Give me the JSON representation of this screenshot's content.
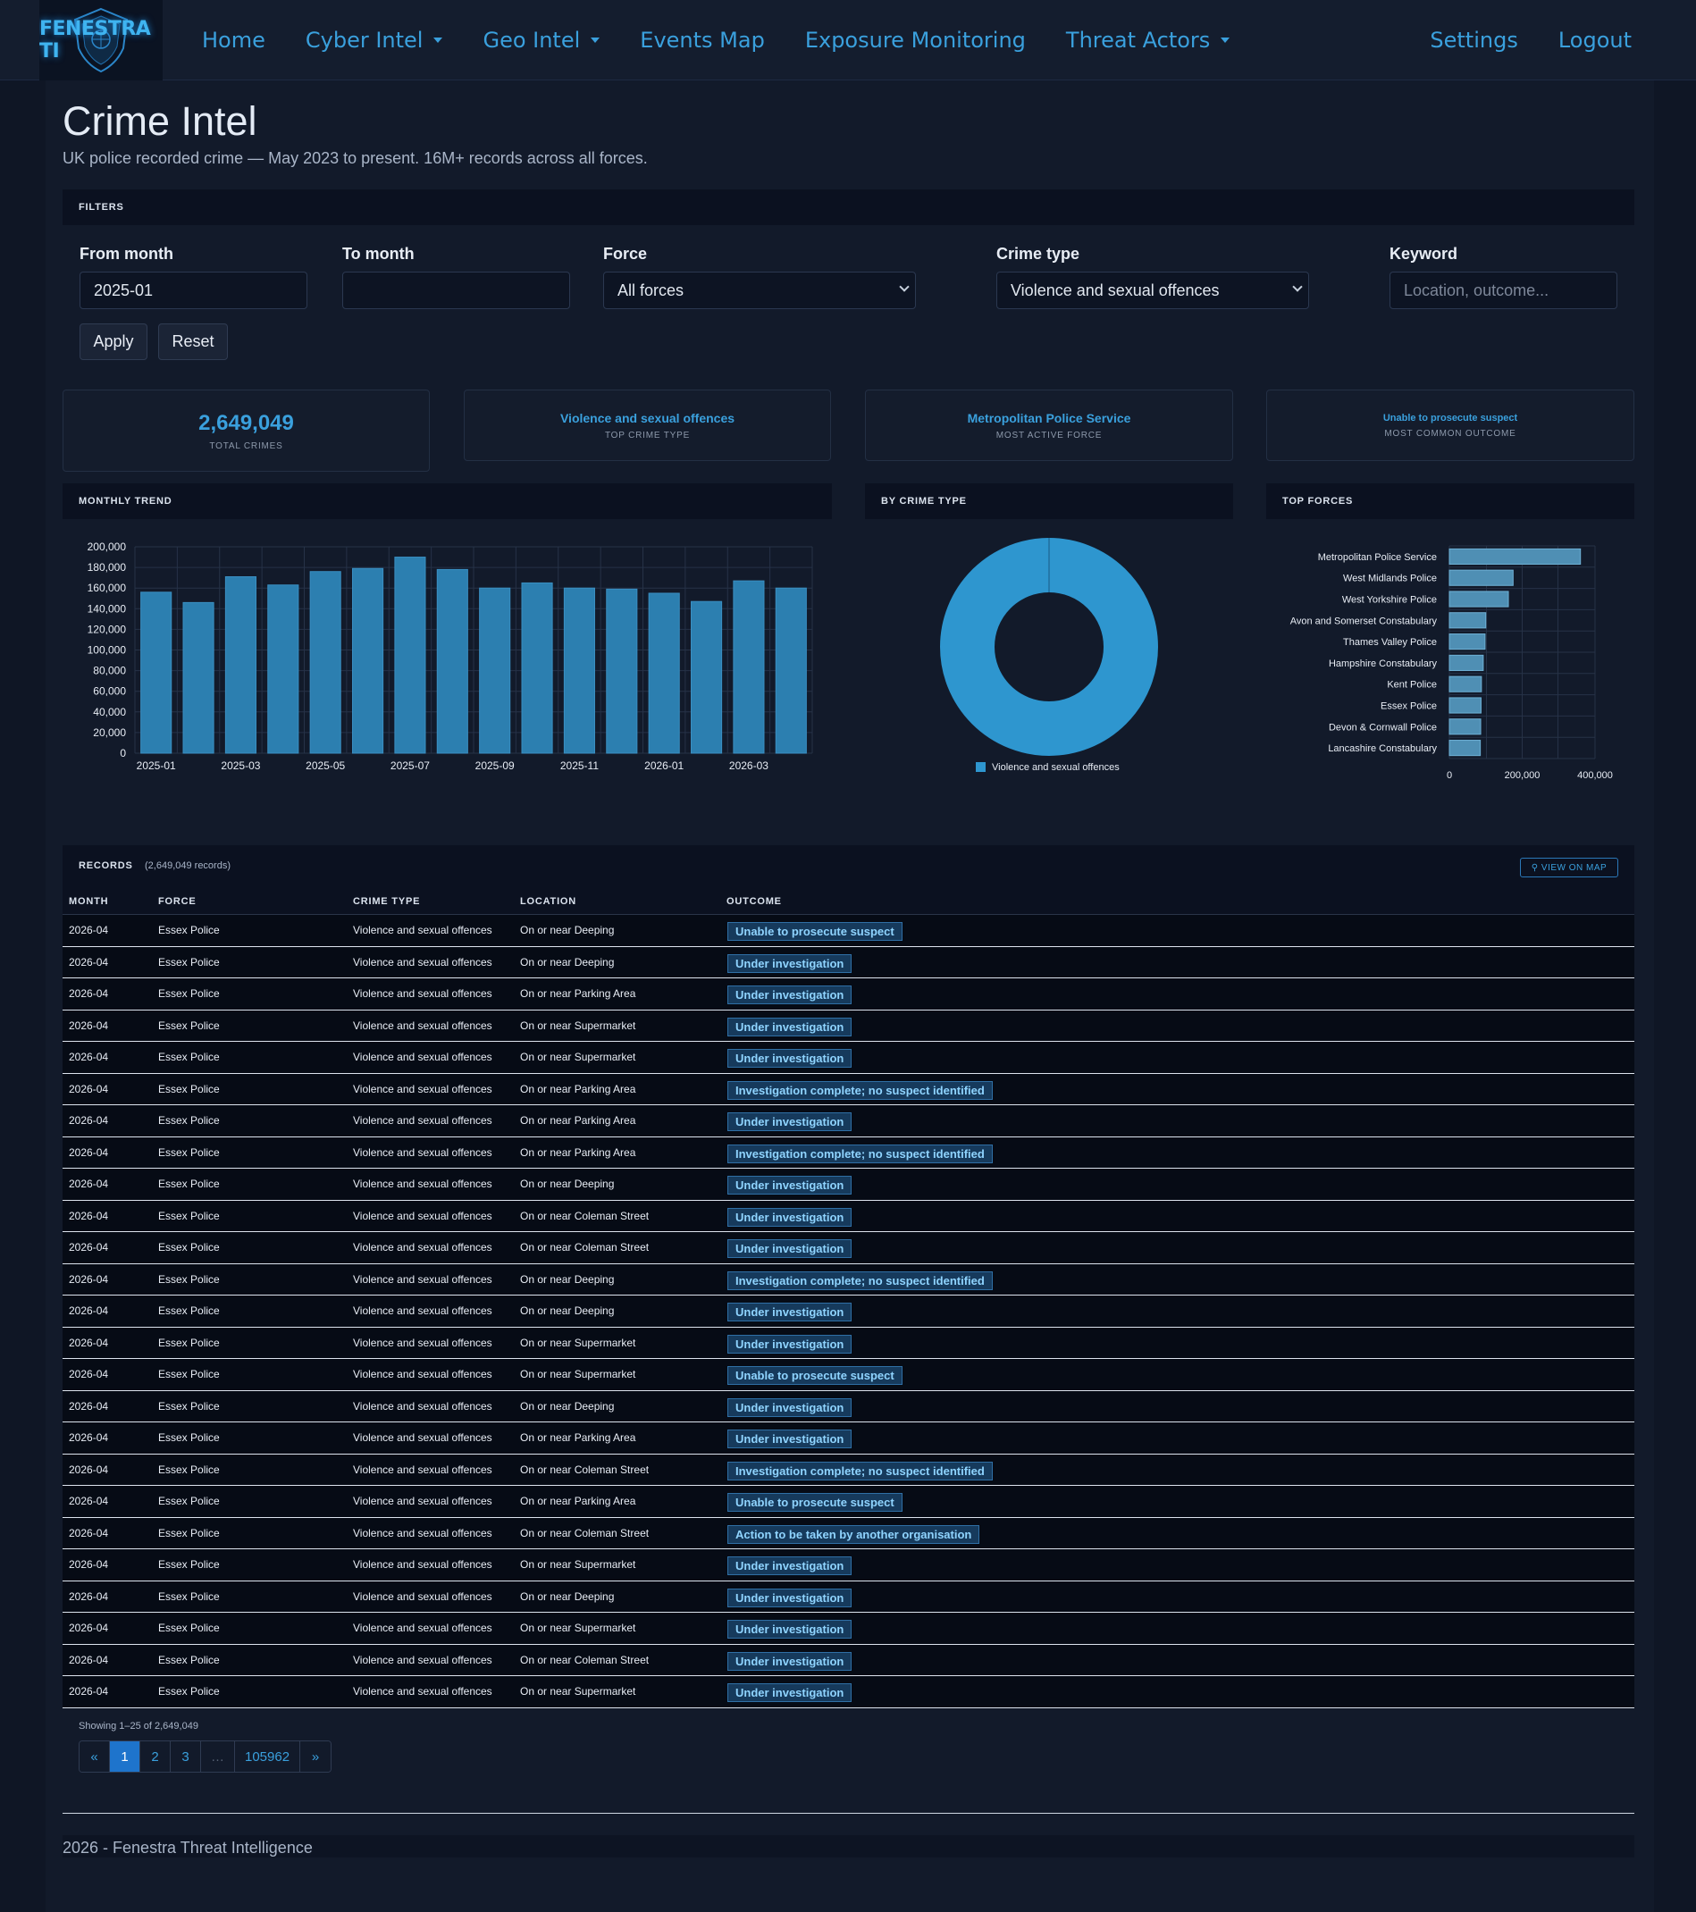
{
  "nav": {
    "logo_text": "FENESTRA TI",
    "links": [
      {
        "label": "Home",
        "dropdown": false
      },
      {
        "label": "Cyber Intel",
        "dropdown": true
      },
      {
        "label": "Geo Intel",
        "dropdown": true
      },
      {
        "label": "Events Map",
        "dropdown": false
      },
      {
        "label": "Exposure Monitoring",
        "dropdown": false
      },
      {
        "label": "Threat Actors",
        "dropdown": true
      }
    ],
    "right_links": [
      {
        "label": "Settings"
      },
      {
        "label": "Logout"
      }
    ]
  },
  "page": {
    "title": "Crime Intel",
    "subtitle": "UK police recorded crime — May 2023 to present. 16M+ records across all forces."
  },
  "filters": {
    "section_title": "FILTERS",
    "from_month": {
      "label": "From month",
      "value": "2025-01"
    },
    "to_month": {
      "label": "To month",
      "value": ""
    },
    "force": {
      "label": "Force",
      "value": "All forces"
    },
    "crime_type": {
      "label": "Crime type",
      "value": "Violence and sexual offences"
    },
    "keyword": {
      "label": "Keyword",
      "placeholder": "Location, outcome..."
    },
    "apply_label": "Apply",
    "reset_label": "Reset"
  },
  "stats": [
    {
      "value": "2,649,049",
      "label": "TOTAL CRIMES"
    },
    {
      "value": "Violence and sexual offences",
      "label": "TOP CRIME TYPE"
    },
    {
      "value": "Metropolitan Police Service",
      "label": "MOST ACTIVE FORCE"
    },
    {
      "value": "Unable to prosecute suspect",
      "label": "MOST COMMON OUTCOME"
    }
  ],
  "chart_titles": {
    "monthly": "MONTHLY TREND",
    "crime_type": "BY CRIME TYPE",
    "forces": "TOP FORCES"
  },
  "chart_data": [
    {
      "type": "bar",
      "title": "MONTHLY TREND",
      "categories": [
        "2025-01",
        "2025-02",
        "2025-03",
        "2025-04",
        "2025-05",
        "2025-06",
        "2025-07",
        "2025-08",
        "2025-09",
        "2025-10",
        "2025-11",
        "2025-12",
        "2026-01",
        "2026-02",
        "2026-03",
        "2026-04"
      ],
      "x_tick_labels": [
        "2025-01",
        "2025-03",
        "2025-05",
        "2025-07",
        "2025-09",
        "2025-11",
        "2026-01",
        "2026-03"
      ],
      "values": [
        156000,
        146000,
        171000,
        163000,
        176000,
        179000,
        190000,
        178000,
        160000,
        165000,
        160000,
        159000,
        155000,
        147000,
        167000,
        160000
      ],
      "ylim": [
        0,
        200000
      ],
      "y_ticks": [
        0,
        20000,
        40000,
        60000,
        80000,
        100000,
        120000,
        140000,
        160000,
        180000,
        200000
      ],
      "y_tick_labels": [
        "0",
        "20,000",
        "40,000",
        "60,000",
        "80,000",
        "100,000",
        "120,000",
        "140,000",
        "160,000",
        "180,000",
        "200,000"
      ],
      "grid": true,
      "color": "#2c7fb0"
    },
    {
      "type": "pie",
      "title": "BY CRIME TYPE",
      "donut": true,
      "labels": [
        "Violence and sexual offences"
      ],
      "values": [
        2649049
      ],
      "legend": "bottom",
      "color": "#2e96cf"
    },
    {
      "type": "bar",
      "orientation": "horizontal",
      "title": "TOP FORCES",
      "categories": [
        "Metropolitan Police Service",
        "West Midlands Police",
        "West Yorkshire Police",
        "Avon and Somerset Constabulary",
        "Thames Valley Police",
        "Hampshire Constabulary",
        "Kent Police",
        "Essex Police",
        "Devon & Cornwall Police",
        "Lancashire Constabulary"
      ],
      "values": [
        360000,
        175000,
        162000,
        100000,
        98000,
        93000,
        88000,
        87000,
        86000,
        85000
      ],
      "xlim": [
        0,
        400000
      ],
      "x_ticks": [
        0,
        200000,
        400000
      ],
      "x_tick_labels": [
        "0",
        "200,000",
        "400,000"
      ],
      "grid": true,
      "color": "#4f8fb4"
    }
  ],
  "records": {
    "title": "RECORDS",
    "count_label": "(2,649,049 records)",
    "map_button": "⚲ VIEW ON MAP",
    "columns": [
      "MONTH",
      "FORCE",
      "CRIME TYPE",
      "LOCATION",
      "OUTCOME"
    ],
    "rows": [
      [
        "2026-04",
        "Essex Police",
        "Violence and sexual offences",
        "On or near Deeping",
        "Unable to prosecute suspect"
      ],
      [
        "2026-04",
        "Essex Police",
        "Violence and sexual offences",
        "On or near Deeping",
        "Under investigation"
      ],
      [
        "2026-04",
        "Essex Police",
        "Violence and sexual offences",
        "On or near Parking Area",
        "Under investigation"
      ],
      [
        "2026-04",
        "Essex Police",
        "Violence and sexual offences",
        "On or near Supermarket",
        "Under investigation"
      ],
      [
        "2026-04",
        "Essex Police",
        "Violence and sexual offences",
        "On or near Supermarket",
        "Under investigation"
      ],
      [
        "2026-04",
        "Essex Police",
        "Violence and sexual offences",
        "On or near Parking Area",
        "Investigation complete; no suspect identified"
      ],
      [
        "2026-04",
        "Essex Police",
        "Violence and sexual offences",
        "On or near Parking Area",
        "Under investigation"
      ],
      [
        "2026-04",
        "Essex Police",
        "Violence and sexual offences",
        "On or near Parking Area",
        "Investigation complete; no suspect identified"
      ],
      [
        "2026-04",
        "Essex Police",
        "Violence and sexual offences",
        "On or near Deeping",
        "Under investigation"
      ],
      [
        "2026-04",
        "Essex Police",
        "Violence and sexual offences",
        "On or near Coleman Street",
        "Under investigation"
      ],
      [
        "2026-04",
        "Essex Police",
        "Violence and sexual offences",
        "On or near Coleman Street",
        "Under investigation"
      ],
      [
        "2026-04",
        "Essex Police",
        "Violence and sexual offences",
        "On or near Deeping",
        "Investigation complete; no suspect identified"
      ],
      [
        "2026-04",
        "Essex Police",
        "Violence and sexual offences",
        "On or near Deeping",
        "Under investigation"
      ],
      [
        "2026-04",
        "Essex Police",
        "Violence and sexual offences",
        "On or near Supermarket",
        "Under investigation"
      ],
      [
        "2026-04",
        "Essex Police",
        "Violence and sexual offences",
        "On or near Supermarket",
        "Unable to prosecute suspect"
      ],
      [
        "2026-04",
        "Essex Police",
        "Violence and sexual offences",
        "On or near Deeping",
        "Under investigation"
      ],
      [
        "2026-04",
        "Essex Police",
        "Violence and sexual offences",
        "On or near Parking Area",
        "Under investigation"
      ],
      [
        "2026-04",
        "Essex Police",
        "Violence and sexual offences",
        "On or near Coleman Street",
        "Investigation complete; no suspect identified"
      ],
      [
        "2026-04",
        "Essex Police",
        "Violence and sexual offences",
        "On or near Parking Area",
        "Unable to prosecute suspect"
      ],
      [
        "2026-04",
        "Essex Police",
        "Violence and sexual offences",
        "On or near Coleman Street",
        "Action to be taken by another organisation"
      ],
      [
        "2026-04",
        "Essex Police",
        "Violence and sexual offences",
        "On or near Supermarket",
        "Under investigation"
      ],
      [
        "2026-04",
        "Essex Police",
        "Violence and sexual offences",
        "On or near Deeping",
        "Under investigation"
      ],
      [
        "2026-04",
        "Essex Police",
        "Violence and sexual offences",
        "On or near Supermarket",
        "Under investigation"
      ],
      [
        "2026-04",
        "Essex Police",
        "Violence and sexual offences",
        "On or near Coleman Street",
        "Under investigation"
      ],
      [
        "2026-04",
        "Essex Police",
        "Violence and sexual offences",
        "On or near Supermarket",
        "Under investigation"
      ]
    ]
  },
  "pagination": {
    "showing": "Showing 1–25 of 2,649,049",
    "pages": [
      "«",
      "1",
      "2",
      "3",
      "…",
      "105962",
      "»"
    ],
    "current": "1"
  },
  "footer": {
    "text": "2026 - Fenestra Threat Intelligence"
  },
  "colors": {
    "accent": "#3aa0dd",
    "badge_bg": "#163a5c",
    "badge_text": "#8fd4ff",
    "active_page": "#1e74cc"
  }
}
